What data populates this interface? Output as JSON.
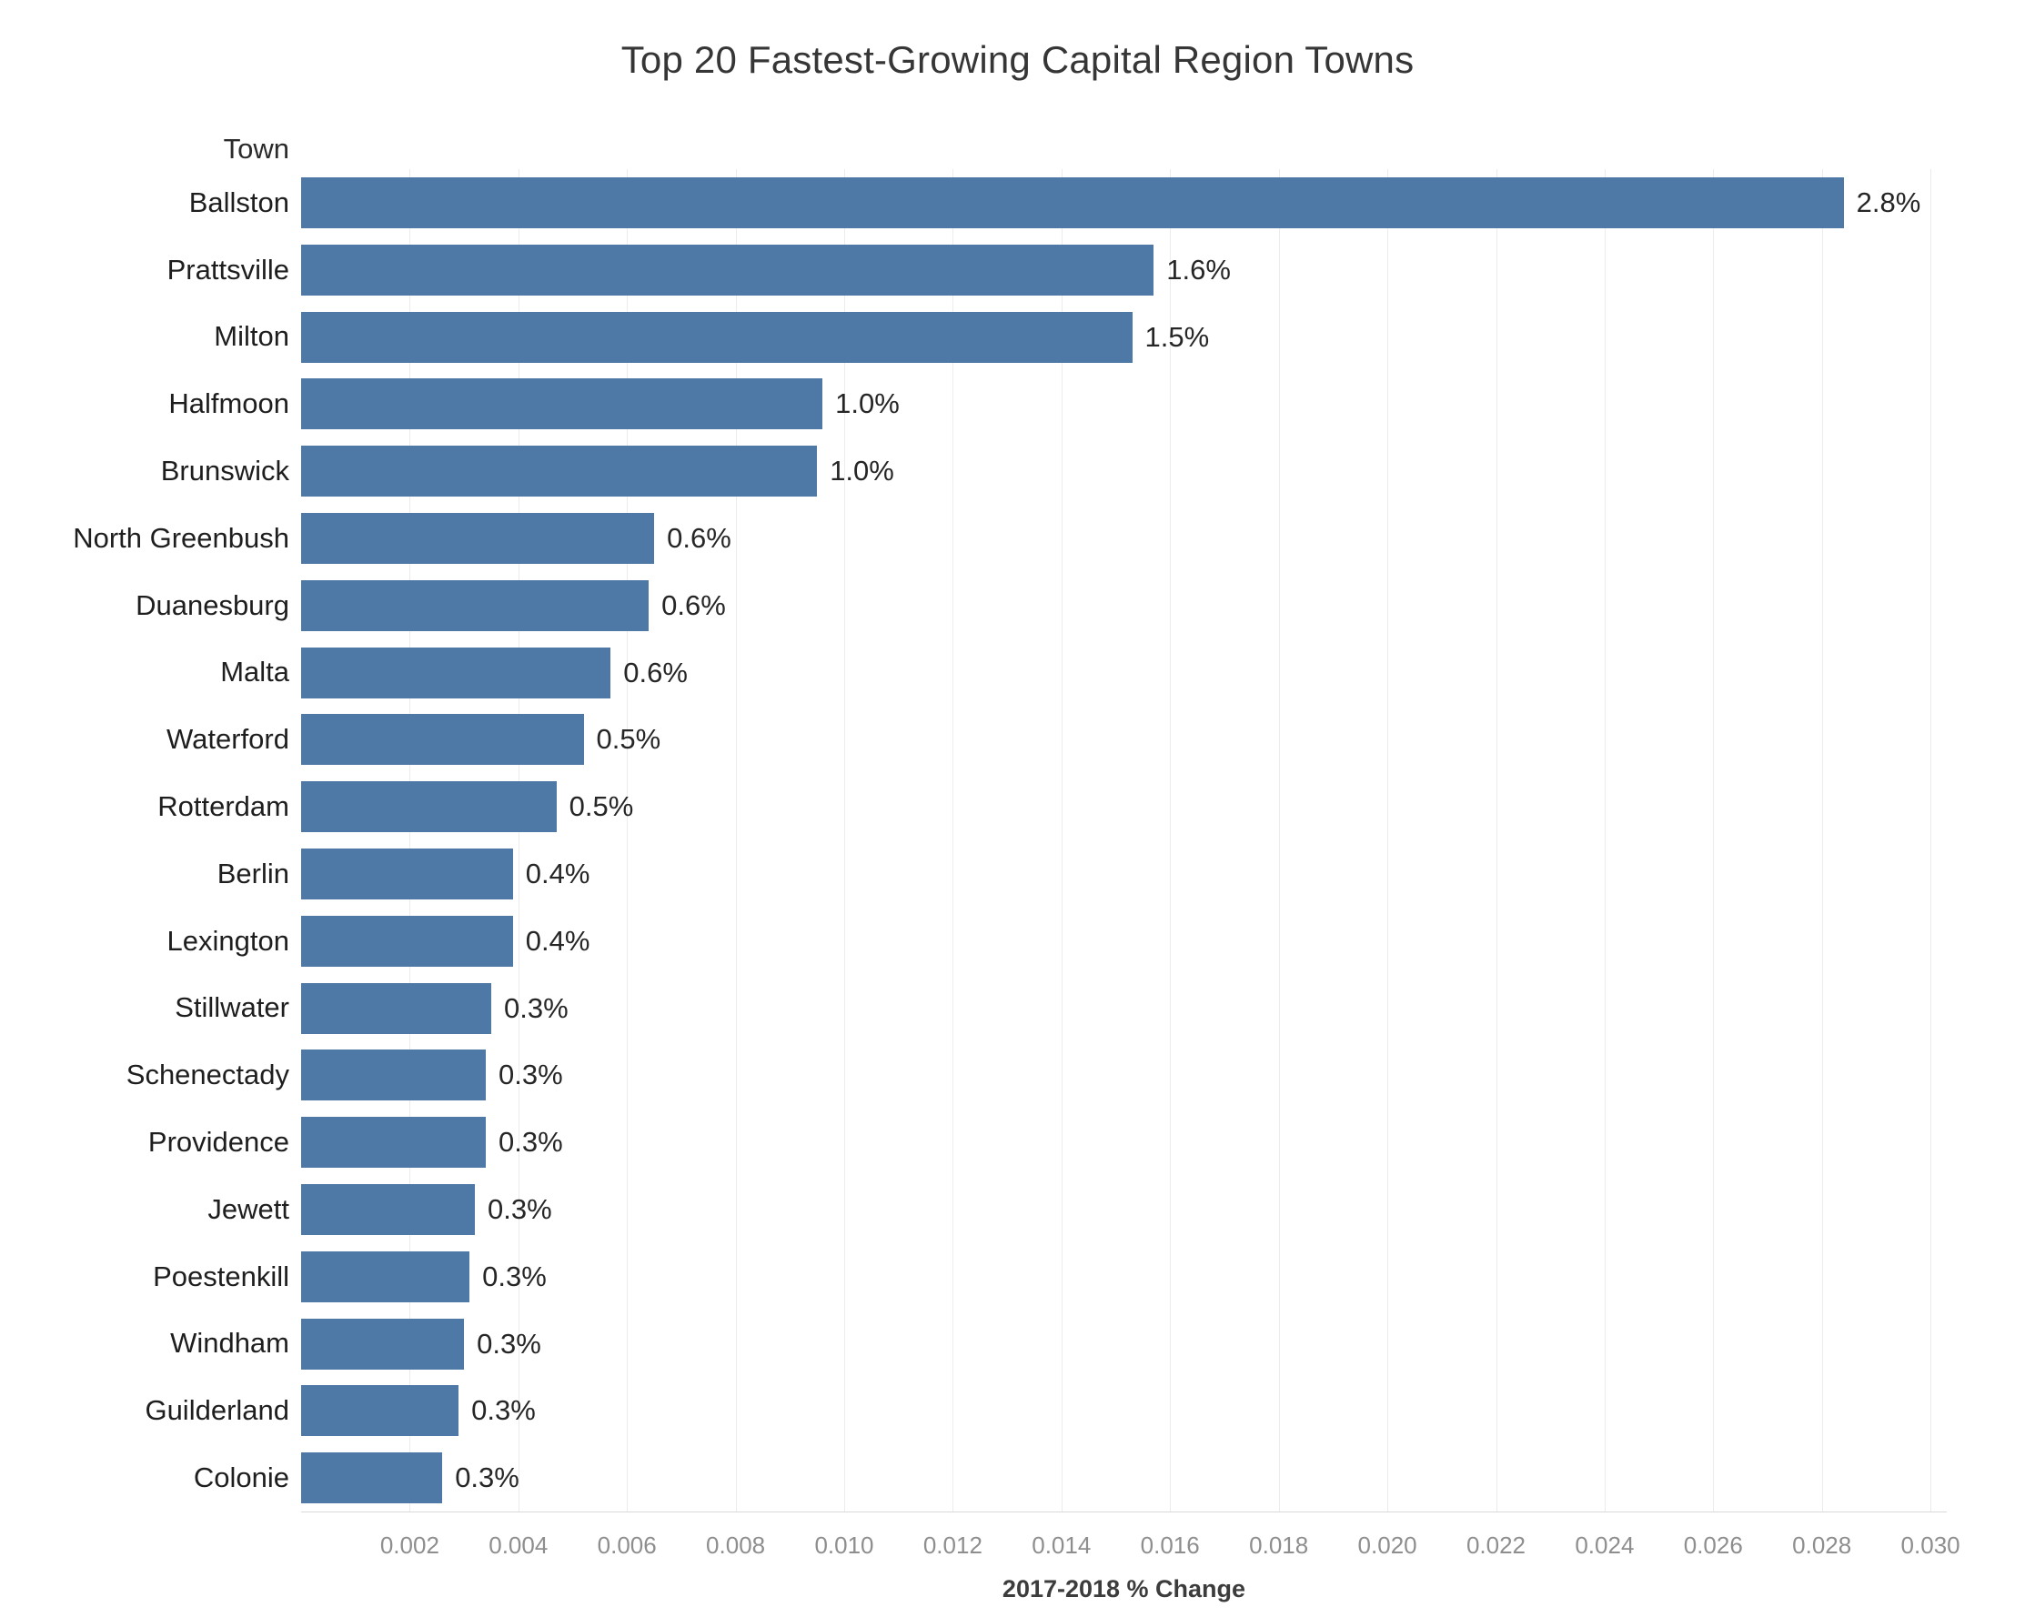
{
  "chart_data": {
    "type": "bar",
    "orientation": "horizontal",
    "title": "Top 20 Fastest-Growing Capital Region Towns",
    "ylabel_header": "Town",
    "xlabel": "2017-2018 % Change",
    "categories": [
      "Ballston",
      "Prattsville",
      "Milton",
      "Halfmoon",
      "Brunswick",
      "North Greenbush",
      "Duanesburg",
      "Malta",
      "Waterford",
      "Rotterdam",
      "Berlin",
      "Lexington",
      "Stillwater",
      "Schenectady",
      "Providence",
      "Jewett",
      "Poestenkill",
      "Windham",
      "Guilderland",
      "Colonie"
    ],
    "values": [
      0.0284,
      0.0157,
      0.0153,
      0.0096,
      0.0095,
      0.0065,
      0.0064,
      0.0057,
      0.0052,
      0.0047,
      0.0039,
      0.0039,
      0.0035,
      0.0034,
      0.0034,
      0.0032,
      0.0031,
      0.003,
      0.0029,
      0.0026
    ],
    "bar_labels": [
      "2.8%",
      "1.6%",
      "1.5%",
      "1.0%",
      "1.0%",
      "0.6%",
      "0.6%",
      "0.6%",
      "0.5%",
      "0.5%",
      "0.4%",
      "0.4%",
      "0.3%",
      "0.3%",
      "0.3%",
      "0.3%",
      "0.3%",
      "0.3%",
      "0.3%",
      "0.3%"
    ],
    "x_tick_values": [
      0.002,
      0.004,
      0.006,
      0.008,
      0.01,
      0.012,
      0.014,
      0.016,
      0.018,
      0.02,
      0.022,
      0.024,
      0.026,
      0.028,
      0.03
    ],
    "x_tick_labels": [
      "0.002",
      "0.004",
      "0.006",
      "0.008",
      "0.010",
      "0.012",
      "0.014",
      "0.016",
      "0.018",
      "0.020",
      "0.022",
      "0.024",
      "0.026",
      "0.028",
      "0.030"
    ],
    "xlim": [
      0,
      0.0303
    ],
    "grid": "vertical",
    "legend": "none",
    "colors": {
      "bar": "#4e79a7",
      "gridline": "#ececec",
      "axis_line": "#d9d9d9",
      "tick_label": "#8e8e8e",
      "text": "#1e1e1e",
      "background": "#ffffff"
    }
  }
}
